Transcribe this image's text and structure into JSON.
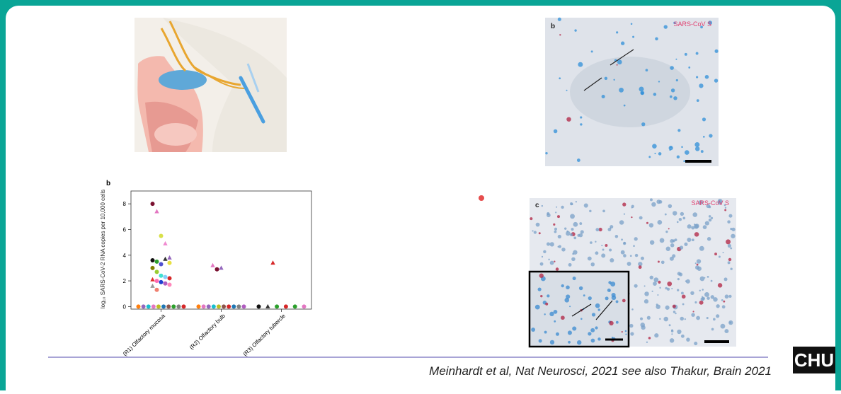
{
  "chart_data": {
    "type": "strip",
    "panel": "b",
    "ylabel": "log₁₀ SARS-CoV-2 RNA copies per 10,000 cells",
    "categories": [
      "(R1) Olfactory mucosa",
      "(R2) Olfactory bulb",
      "(R3) Olfactory tubercle"
    ],
    "ylim": [
      -0.2,
      9
    ],
    "yticks": [
      0,
      2,
      4,
      6,
      8
    ],
    "points": [
      [
        {
          "y": 8,
          "color": "#7a1030",
          "marker": "circle"
        },
        {
          "y": 7.4,
          "color": "#e377c2",
          "marker": "triangle"
        },
        {
          "y": 5.5,
          "color": "#d8e04a",
          "marker": "circle"
        },
        {
          "y": 4.9,
          "color": "#f08ad0",
          "marker": "triangle"
        },
        {
          "y": 3.8,
          "color": "#9467bd",
          "marker": "triangle"
        },
        {
          "y": 3.6,
          "color": "#111111",
          "marker": "circle"
        },
        {
          "y": 3.5,
          "color": "#2ca02c",
          "marker": "circle"
        },
        {
          "y": 3.3,
          "color": "#5050d0",
          "marker": "circle"
        },
        {
          "y": 3.7,
          "color": "#333333",
          "marker": "triangle"
        },
        {
          "y": 3.4,
          "color": "#e8e040",
          "marker": "circle"
        },
        {
          "y": 3.0,
          "color": "#808000",
          "marker": "circle"
        },
        {
          "y": 2.7,
          "color": "#9acd32",
          "marker": "circle"
        },
        {
          "y": 2.4,
          "color": "#40e0d0",
          "marker": "circle"
        },
        {
          "y": 2.3,
          "color": "#87cefa",
          "marker": "circle"
        },
        {
          "y": 2.2,
          "color": "#d62728",
          "marker": "circle"
        },
        {
          "y": 2.1,
          "color": "#e03030",
          "marker": "triangle"
        },
        {
          "y": 2.0,
          "color": "#ff69b4",
          "marker": "circle"
        },
        {
          "y": 1.9,
          "color": "#1f3fd0",
          "marker": "circle"
        },
        {
          "y": 1.8,
          "color": "#b05cc0",
          "marker": "circle"
        },
        {
          "y": 1.7,
          "color": "#ff88bb",
          "marker": "circle"
        },
        {
          "y": 1.6,
          "color": "#999999",
          "marker": "triangle"
        },
        {
          "y": 1.3,
          "color": "#f08070",
          "marker": "circle"
        },
        {
          "y": 0,
          "color": "#ff7f0e",
          "marker": "circle"
        },
        {
          "y": 0,
          "color": "#9467bd",
          "marker": "circle"
        },
        {
          "y": 0,
          "color": "#17becf",
          "marker": "circle"
        },
        {
          "y": 0,
          "color": "#e377c2",
          "marker": "circle"
        },
        {
          "y": 0,
          "color": "#bcbd22",
          "marker": "circle"
        },
        {
          "y": 0,
          "color": "#1f77b4",
          "marker": "circle"
        },
        {
          "y": 0,
          "color": "#8c564b",
          "marker": "circle"
        },
        {
          "y": 0,
          "color": "#2ca02c",
          "marker": "circle"
        },
        {
          "y": 0,
          "color": "#7f7f7f",
          "marker": "circle"
        },
        {
          "y": 0,
          "color": "#d62728",
          "marker": "circle"
        }
      ],
      [
        {
          "y": 3.2,
          "color": "#e377c2",
          "marker": "triangle"
        },
        {
          "y": 2.9,
          "color": "#7a1030",
          "marker": "circle"
        },
        {
          "y": 3.0,
          "color": "#9467bd",
          "marker": "triangle"
        },
        {
          "y": 0,
          "color": "#ff7f0e",
          "marker": "circle"
        },
        {
          "y": 0,
          "color": "#e377c2",
          "marker": "circle"
        },
        {
          "y": 0,
          "color": "#9467bd",
          "marker": "circle"
        },
        {
          "y": 0,
          "color": "#17becf",
          "marker": "circle"
        },
        {
          "y": 0,
          "color": "#bcbd22",
          "marker": "circle"
        },
        {
          "y": 0,
          "color": "#8c564b",
          "marker": "circle"
        },
        {
          "y": 0,
          "color": "#d62728",
          "marker": "circle"
        },
        {
          "y": 0,
          "color": "#1f77b4",
          "marker": "circle"
        },
        {
          "y": 0,
          "color": "#7f7f7f",
          "marker": "circle"
        },
        {
          "y": 0,
          "color": "#b05cc0",
          "marker": "circle"
        }
      ],
      [
        {
          "y": 3.4,
          "color": "#d62728",
          "marker": "triangle"
        },
        {
          "y": 0,
          "color": "#111111",
          "marker": "circle"
        },
        {
          "y": 0,
          "color": "#333333",
          "marker": "triangle"
        },
        {
          "y": 0,
          "color": "#2ca02c",
          "marker": "circle"
        },
        {
          "y": 0,
          "color": "#d62728",
          "marker": "circle"
        },
        {
          "y": 0,
          "color": "#2ca02c",
          "marker": "circle"
        },
        {
          "y": 0,
          "color": "#e377c2",
          "marker": "circle"
        }
      ]
    ]
  },
  "panels": {
    "b_label": "b",
    "b_stain": "SARS-CoV S",
    "c_label": "c",
    "c_stain": "SARS-CoV S"
  },
  "citation": "Meinhardt et al, Nat Neurosci, 2021 see also Thakur, Brain 2021",
  "logo": "CHU"
}
